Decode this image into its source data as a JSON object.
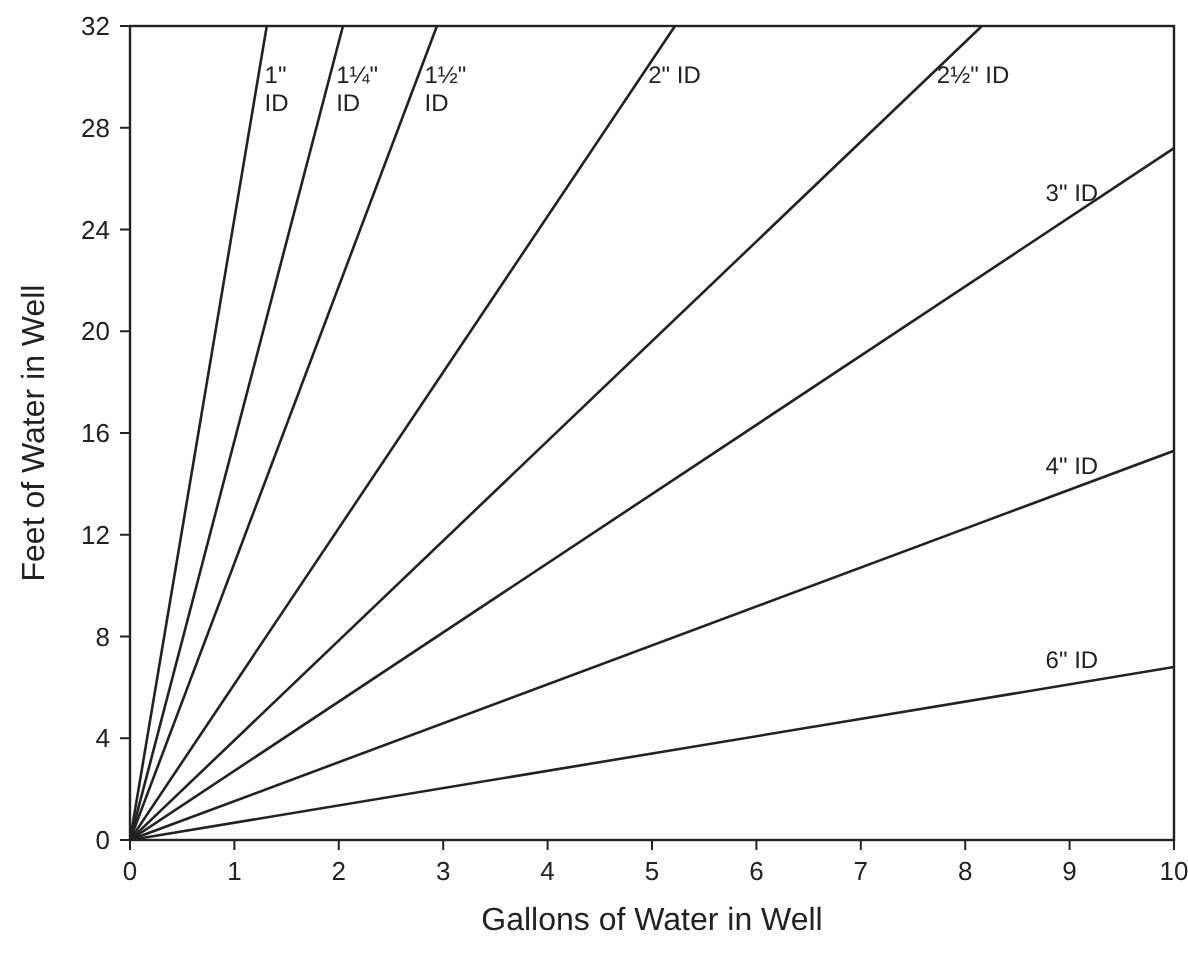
{
  "chart_data": {
    "type": "line",
    "xlabel": "Gallons of Water in Well",
    "ylabel": "Feet of Water in Well",
    "xlim": [
      0,
      10
    ],
    "ylim": [
      0,
      32
    ],
    "xticks": [
      0,
      1,
      2,
      3,
      4,
      5,
      6,
      7,
      8,
      9,
      10
    ],
    "yticks": [
      0,
      4,
      8,
      12,
      16,
      20,
      24,
      28,
      32
    ],
    "grid": false,
    "marker": "none",
    "line_style": "solid",
    "series": [
      {
        "name": "1\"\nID",
        "color": "#222222",
        "x": [
          0,
          1.31
        ],
        "values": [
          0,
          32
        ]
      },
      {
        "name": "1¼\"\nID",
        "color": "#222222",
        "x": [
          0,
          2.04
        ],
        "values": [
          0,
          32
        ]
      },
      {
        "name": "1½\"\nID",
        "color": "#222222",
        "x": [
          0,
          2.94
        ],
        "values": [
          0,
          32
        ]
      },
      {
        "name": "2\" ID",
        "color": "#222222",
        "x": [
          0,
          5.22
        ],
        "values": [
          0,
          32
        ]
      },
      {
        "name": "2½\" ID",
        "color": "#222222",
        "x": [
          0,
          8.16
        ],
        "values": [
          0,
          32
        ]
      },
      {
        "name": "3\" ID",
        "color": "#222222",
        "x": [
          0,
          10
        ],
        "values": [
          0,
          27.2
        ]
      },
      {
        "name": "4\" ID",
        "color": "#222222",
        "x": [
          0,
          10
        ],
        "values": [
          0,
          15.3
        ]
      },
      {
        "name": "6\" ID",
        "color": "#222222",
        "x": [
          0,
          10
        ],
        "values": [
          0,
          6.8
        ]
      }
    ]
  }
}
